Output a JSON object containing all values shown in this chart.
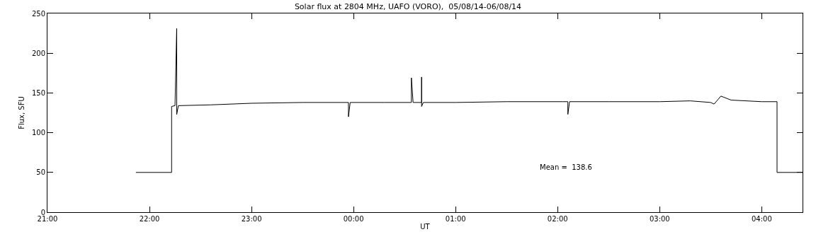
{
  "chart_data": {
    "type": "line",
    "title": "Solar flux at 2804 MHz, UAFO (VORO),  05/08/14-06/08/14",
    "xlabel": "UT",
    "ylabel": "Flux, SFU",
    "annotations": [
      "Mean =  138.6"
    ],
    "x": [
      "--08-05T21:52",
      "--08-05T22:13",
      "--08-05T22:13",
      "--08-05T22:15",
      "--08-05T22:16",
      "--08-05T22:16",
      "--08-05T22:17",
      "--08-05T22:36",
      "--08-05T23:00",
      "--08-05T23:30",
      "--08-05T23:57",
      "--08-05T23:57",
      "--08-05T23:58",
      "--08-06T00:18",
      "--08-06T00:34",
      "--08-06T00:34",
      "--08-06T00:35",
      "--08-06T00:40",
      "--08-06T00:40",
      "--08-06T00:40",
      "--08-06T00:41",
      "--08-06T01:00",
      "--08-06T01:30",
      "--08-06T02:03",
      "--08-06T02:06",
      "--08-06T02:06",
      "--08-06T02:07",
      "--08-06T02:30",
      "--08-06T03:00",
      "--08-06T03:18",
      "--08-06T03:30",
      "--08-06T03:32",
      "--08-06T03:36",
      "--08-06T03:42",
      "--08-06T04:00",
      "--08-06T04:09",
      "--08-06T04:09",
      "--08-06T04:24"
    ],
    "series": [
      {
        "color": "#000000",
        "values": [
          50,
          50,
          133,
          134,
          231,
          123,
          134,
          135,
          137,
          138,
          138,
          120,
          138,
          138,
          138,
          169,
          138,
          138,
          170,
          133,
          138,
          138,
          139,
          139,
          139,
          123,
          139,
          139,
          139,
          140,
          138,
          136,
          146,
          141,
          139,
          139,
          50,
          50
        ]
      }
    ],
    "xlim": [
      "--08-05T21:00",
      "--08-06T04:24"
    ],
    "xticks": [
      {
        "value": "--08-05T21:00",
        "label": "21:00"
      },
      {
        "value": "--08-05T22:00",
        "label": "22:00"
      },
      {
        "value": "--08-05T23:00",
        "label": "23:00"
      },
      {
        "value": "--08-06T00:00",
        "label": "00:00"
      },
      {
        "value": "--08-06T01:00",
        "label": "01:00"
      },
      {
        "value": "--08-06T02:00",
        "label": "02:00"
      },
      {
        "value": "--08-06T03:00",
        "label": "03:00"
      },
      {
        "value": "--08-06T04:00",
        "label": "04:00"
      }
    ],
    "ylim": [
      0,
      250
    ],
    "yticks": [
      0,
      50,
      100,
      150,
      200,
      250
    ],
    "grid": false,
    "marker": "none",
    "line_style": "solid"
  }
}
